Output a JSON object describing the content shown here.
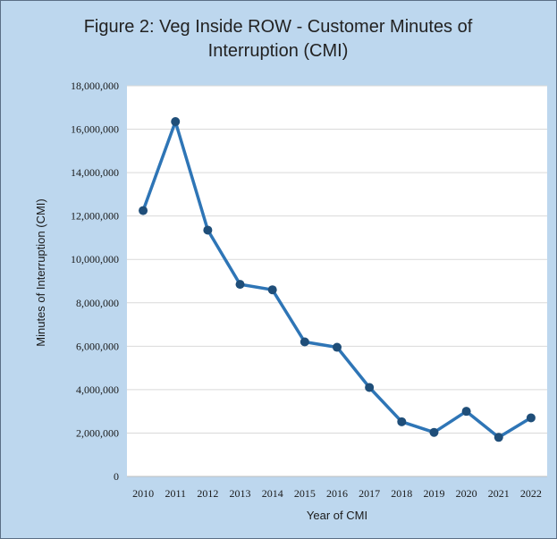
{
  "chart_data": {
    "type": "line",
    "title": "Figure 2: Veg Inside ROW - Customer Minutes of Interruption (CMI)",
    "xlabel": "Year of CMI",
    "ylabel": "Minutes of Interruption (CMI)",
    "categories": [
      "2010",
      "2011",
      "2012",
      "2013",
      "2014",
      "2015",
      "2016",
      "2017",
      "2018",
      "2019",
      "2020",
      "2021",
      "2022"
    ],
    "series": [
      {
        "values": [
          12250000,
          16350000,
          11350000,
          8850000,
          8600000,
          6200000,
          5950000,
          4100000,
          2520000,
          2030000,
          3000000,
          1800000,
          2700000
        ]
      }
    ],
    "ylim": [
      0,
      18000000
    ],
    "yticks": [
      "0",
      "2,000,000",
      "4,000,000",
      "6,000,000",
      "8,000,000",
      "10,000,000",
      "12,000,000",
      "14,000,000",
      "16,000,000",
      "18,000,000"
    ],
    "grid": true,
    "legend": "none",
    "colors": {
      "line": "#2e75b6",
      "marker": "#1f4e79",
      "frame_background": "#bdd7ee",
      "plot_background": "#ffffff",
      "gridline": "#d9d9d9"
    }
  }
}
